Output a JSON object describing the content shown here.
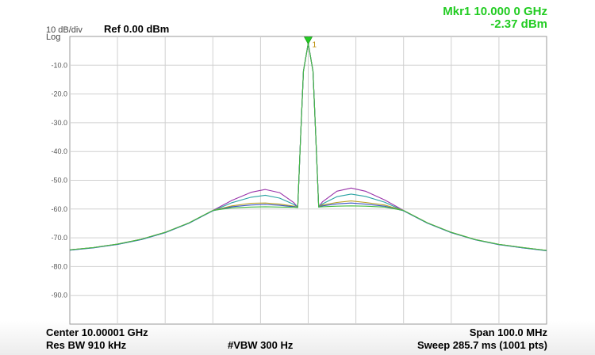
{
  "marker": {
    "readout_freq": "Mkr1 10.000 0 GHz",
    "readout_amp": "-2.37 dBm",
    "number_label": "1",
    "color": "#22cc22"
  },
  "header": {
    "scale": "10 dB/div",
    "scale_type": "Log",
    "ref_level": "Ref 0.00 dBm"
  },
  "footer": {
    "center": "Center 10.00001 GHz",
    "span": "Span 100.0 MHz",
    "rbw": "Res BW 910 kHz",
    "vbw": "#VBW 300 Hz",
    "sweep": "Sweep  285.7 ms (1001 pts)"
  },
  "chart_data": {
    "type": "line",
    "title": "",
    "xlabel": "",
    "ylabel": "",
    "x_unit": "MHz offset from center",
    "xlim": [
      -50,
      50
    ],
    "ylim": [
      -100,
      0
    ],
    "yticks": [
      -10,
      -20,
      -30,
      -40,
      -50,
      -60,
      -70,
      -80,
      -90
    ],
    "ytick_labels": [
      "-10.0",
      "-20.0",
      "-30.0",
      "-40.0",
      "-50.0",
      "-60.0",
      "-70.0",
      "-80.0",
      "-90.0"
    ],
    "grid": true,
    "marker_x": 0,
    "marker_y": -2.37,
    "series": [
      {
        "color": "#9933aa",
        "x": [
          -50,
          -45,
          -40,
          -35,
          -30,
          -25,
          -20,
          -16,
          -12,
          -9,
          -6,
          -3,
          -2.2,
          -1.6,
          -1,
          0,
          1,
          1.6,
          2.2,
          3,
          6,
          9,
          12,
          16,
          20,
          25,
          30,
          35,
          40,
          45,
          50
        ],
        "values": [
          -74.2,
          -73.4,
          -72.2,
          -70.5,
          -68.1,
          -64.8,
          -60.5,
          -57.0,
          -54.2,
          -53.2,
          -54.3,
          -57.8,
          -59.4,
          -35.0,
          -12.0,
          -2.4,
          -12.0,
          -35.0,
          -59.2,
          -57.5,
          -53.8,
          -52.7,
          -53.8,
          -56.8,
          -60.5,
          -64.8,
          -68.1,
          -70.6,
          -72.3,
          -73.4,
          -74.4
        ]
      },
      {
        "color": "#2aa3a3",
        "x": [
          -50,
          -45,
          -40,
          -35,
          -30,
          -25,
          -20,
          -16,
          -12,
          -9,
          -6,
          -3,
          -2.2,
          -1.6,
          -1,
          0,
          1,
          1.6,
          2.2,
          3,
          6,
          9,
          12,
          16,
          20,
          25,
          30,
          35,
          40,
          45,
          50
        ],
        "values": [
          -74.3,
          -73.4,
          -72.3,
          -70.6,
          -68.2,
          -64.9,
          -60.6,
          -57.8,
          -55.9,
          -55.2,
          -56.2,
          -58.4,
          -59.4,
          -35.0,
          -12.0,
          -2.4,
          -12.0,
          -35.0,
          -59.2,
          -58.2,
          -55.7,
          -54.8,
          -55.6,
          -57.6,
          -60.6,
          -64.9,
          -68.2,
          -70.6,
          -72.3,
          -73.5,
          -74.4
        ]
      },
      {
        "color": "#b8a020",
        "x": [
          -50,
          -45,
          -40,
          -35,
          -30,
          -25,
          -20,
          -16,
          -12,
          -9,
          -6,
          -3,
          -2.2,
          -1.6,
          -1,
          0,
          1,
          1.6,
          2.2,
          3,
          6,
          9,
          12,
          16,
          20,
          25,
          30,
          35,
          40,
          45,
          50
        ],
        "values": [
          -74.2,
          -73.4,
          -72.2,
          -70.5,
          -68.1,
          -64.8,
          -60.5,
          -58.9,
          -58.0,
          -57.9,
          -58.3,
          -59.0,
          -59.4,
          -35.0,
          -12.0,
          -2.4,
          -12.0,
          -35.0,
          -59.2,
          -58.6,
          -57.7,
          -57.2,
          -57.7,
          -58.6,
          -60.5,
          -64.8,
          -68.1,
          -70.6,
          -72.3,
          -73.4,
          -74.4
        ]
      },
      {
        "color": "#3a55c8",
        "x": [
          -50,
          -45,
          -40,
          -35,
          -30,
          -25,
          -20,
          -16,
          -12,
          -9,
          -6,
          -3,
          -2.2,
          -1.6,
          -1,
          0,
          1,
          1.6,
          2.2,
          3,
          6,
          9,
          12,
          16,
          20,
          25,
          30,
          35,
          40,
          45,
          50
        ],
        "values": [
          -74.3,
          -73.5,
          -72.3,
          -70.6,
          -68.2,
          -64.9,
          -60.6,
          -59.2,
          -58.6,
          -58.4,
          -58.7,
          -59.2,
          -59.5,
          -35.0,
          -12.0,
          -2.4,
          -12.0,
          -35.0,
          -59.3,
          -58.9,
          -58.2,
          -57.9,
          -58.3,
          -59.0,
          -60.6,
          -64.9,
          -68.2,
          -70.7,
          -72.4,
          -73.5,
          -74.5
        ]
      },
      {
        "color": "#44bb44",
        "x": [
          -50,
          -45,
          -40,
          -35,
          -30,
          -25,
          -20,
          -16,
          -12,
          -9,
          -6,
          -3,
          -2.2,
          -1.6,
          -1,
          0,
          1,
          1.6,
          2.2,
          3,
          6,
          9,
          12,
          16,
          20,
          25,
          30,
          35,
          40,
          45,
          50
        ],
        "values": [
          -74.2,
          -73.4,
          -72.2,
          -70.5,
          -68.1,
          -64.8,
          -60.5,
          -59.6,
          -59.3,
          -59.2,
          -59.3,
          -59.4,
          -59.5,
          -35.0,
          -12.0,
          -2.4,
          -12.0,
          -35.0,
          -59.3,
          -59.2,
          -59.0,
          -58.9,
          -59.0,
          -59.3,
          -60.5,
          -64.8,
          -68.1,
          -70.6,
          -72.3,
          -73.4,
          -74.4
        ]
      }
    ]
  }
}
